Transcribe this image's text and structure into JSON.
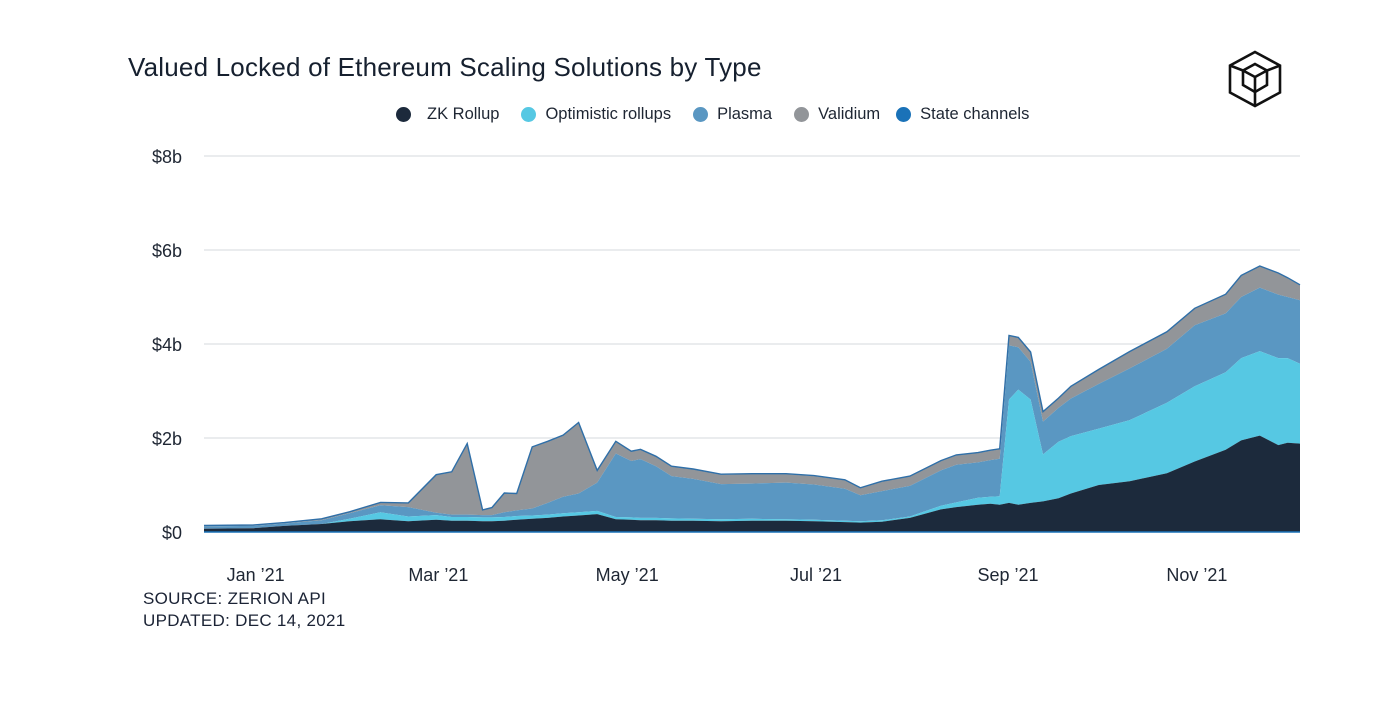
{
  "title": "Valued Locked of Ethereum Scaling Solutions by Type",
  "logo_icon": "hexagon-cube-logo-icon",
  "legend": [
    {
      "label": "ZK Rollup",
      "color": "#1c2a3c",
      "key": "zk"
    },
    {
      "label": "Optimistic rollups",
      "color": "#56c8e3",
      "key": "opt"
    },
    {
      "label": "Plasma",
      "color": "#5a97c2",
      "key": "plasma"
    },
    {
      "label": "Validium",
      "color": "#929599",
      "key": "validium"
    },
    {
      "label": "State channels",
      "color": "#1a72b8",
      "key": "state"
    }
  ],
  "footer": {
    "source": "SOURCE: ZERION API",
    "updated": "UPDATED: DEC 14, 2021"
  },
  "chart_data": {
    "type": "area",
    "stacked": true,
    "title": "Valued Locked of Ethereum Scaling Solutions by Type",
    "xlabel": "",
    "ylabel": "",
    "ylim": [
      0,
      8
    ],
    "y_unit": "billion USD",
    "y_ticks": [
      0,
      2,
      4,
      6,
      8
    ],
    "y_tick_labels": [
      "$0",
      "$2b",
      "$4b",
      "$6b",
      "$8b"
    ],
    "x_ticks": [
      "2021-01-01",
      "2021-03-01",
      "2021-05-01",
      "2021-07-01",
      "2021-09-01",
      "2021-11-01"
    ],
    "x_tick_labels": [
      "Jan ’21",
      "Mar ’21",
      "May ’21",
      "Jul  ’21",
      "Sep  ’21",
      "Nov ’21"
    ],
    "grid": true,
    "legend_position": "top",
    "x": [
      "2020-12-25",
      "2021-01-10",
      "2021-01-20",
      "2021-02-01",
      "2021-02-10",
      "2021-02-20",
      "2021-03-01",
      "2021-03-10",
      "2021-03-15",
      "2021-03-20",
      "2021-03-25",
      "2021-03-28",
      "2021-04-01",
      "2021-04-05",
      "2021-04-10",
      "2021-04-15",
      "2021-04-20",
      "2021-04-25",
      "2021-05-01",
      "2021-05-07",
      "2021-05-12",
      "2021-05-15",
      "2021-05-20",
      "2021-05-25",
      "2021-06-01",
      "2021-06-10",
      "2021-06-20",
      "2021-07-01",
      "2021-07-10",
      "2021-07-20",
      "2021-07-25",
      "2021-08-01",
      "2021-08-10",
      "2021-08-20",
      "2021-08-25",
      "2021-09-01",
      "2021-09-05",
      "2021-09-08",
      "2021-09-11",
      "2021-09-14",
      "2021-09-18",
      "2021-09-22",
      "2021-09-27",
      "2021-10-01",
      "2021-10-10",
      "2021-10-20",
      "2021-11-01",
      "2021-11-10",
      "2021-11-20",
      "2021-11-25",
      "2021-12-01",
      "2021-12-07",
      "2021-12-10",
      "2021-12-14"
    ],
    "series": [
      {
        "name": "ZK Rollup",
        "values": [
          0.07,
          0.08,
          0.13,
          0.17,
          0.23,
          0.27,
          0.23,
          0.26,
          0.24,
          0.24,
          0.23,
          0.23,
          0.24,
          0.26,
          0.28,
          0.3,
          0.33,
          0.35,
          0.38,
          0.27,
          0.26,
          0.25,
          0.25,
          0.24,
          0.24,
          0.23,
          0.24,
          0.24,
          0.23,
          0.21,
          0.2,
          0.22,
          0.3,
          0.48,
          0.53,
          0.58,
          0.6,
          0.58,
          0.62,
          0.58,
          0.62,
          0.65,
          0.72,
          0.82,
          1.0,
          1.08,
          1.25,
          1.5,
          1.75,
          1.95,
          2.05,
          1.85,
          1.9,
          1.88
        ]
      },
      {
        "name": "Optimistic rollups",
        "values": [
          0,
          0,
          0,
          0,
          0.05,
          0.15,
          0.1,
          0.1,
          0.08,
          0.08,
          0.08,
          0.08,
          0.08,
          0.08,
          0.07,
          0.07,
          0.07,
          0.07,
          0.07,
          0.05,
          0.05,
          0.05,
          0.05,
          0.05,
          0.04,
          0.04,
          0.04,
          0.03,
          0.03,
          0.03,
          0.03,
          0.03,
          0.03,
          0.08,
          0.1,
          0.15,
          0.15,
          0.18,
          2.2,
          2.45,
          2.2,
          1.0,
          1.2,
          1.22,
          1.2,
          1.3,
          1.5,
          1.6,
          1.65,
          1.75,
          1.8,
          1.85,
          1.8,
          1.7
        ]
      },
      {
        "name": "Plasma",
        "values": [
          0.05,
          0.05,
          0.05,
          0.08,
          0.12,
          0.15,
          0.2,
          0.05,
          0.05,
          0.05,
          0.05,
          0.05,
          0.1,
          0.12,
          0.15,
          0.25,
          0.35,
          0.4,
          0.6,
          1.35,
          1.2,
          1.25,
          1.1,
          0.9,
          0.85,
          0.75,
          0.75,
          0.78,
          0.75,
          0.68,
          0.55,
          0.62,
          0.65,
          0.75,
          0.8,
          0.75,
          0.78,
          0.8,
          1.15,
          0.9,
          0.8,
          0.7,
          0.72,
          0.8,
          0.95,
          1.1,
          1.15,
          1.3,
          1.25,
          1.3,
          1.35,
          1.35,
          1.3,
          1.35
        ]
      },
      {
        "name": "Validium",
        "values": [
          0.01,
          0.01,
          0.01,
          0.02,
          0.02,
          0.05,
          0.08,
          0.8,
          0.9,
          1.5,
          0.1,
          0.15,
          0.4,
          0.35,
          1.3,
          1.3,
          1.3,
          1.5,
          0.25,
          0.25,
          0.2,
          0.2,
          0.2,
          0.2,
          0.2,
          0.2,
          0.2,
          0.18,
          0.18,
          0.18,
          0.15,
          0.2,
          0.2,
          0.2,
          0.2,
          0.2,
          0.2,
          0.2,
          0.2,
          0.2,
          0.2,
          0.2,
          0.2,
          0.25,
          0.3,
          0.35,
          0.35,
          0.35,
          0.4,
          0.45,
          0.45,
          0.45,
          0.4,
          0.32
        ]
      },
      {
        "name": "State channels",
        "values": [
          0.01,
          0.01,
          0.01,
          0.01,
          0.01,
          0.01,
          0.01,
          0.01,
          0.01,
          0.01,
          0.01,
          0.01,
          0.01,
          0.01,
          0.01,
          0.01,
          0.01,
          0.01,
          0.01,
          0.01,
          0.01,
          0.01,
          0.01,
          0.01,
          0.01,
          0.01,
          0.01,
          0.01,
          0.01,
          0.01,
          0.01,
          0.01,
          0.01,
          0.01,
          0.01,
          0.01,
          0.01,
          0.01,
          0.01,
          0.01,
          0.01,
          0.01,
          0.01,
          0.01,
          0.01,
          0.01,
          0.01,
          0.01,
          0.01,
          0.01,
          0.01,
          0.01,
          0.01,
          0.01
        ]
      }
    ]
  }
}
